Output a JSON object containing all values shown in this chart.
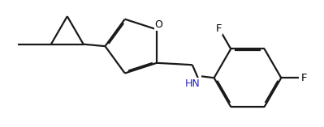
{
  "bg_color": "#ffffff",
  "bond_color": "#1a1a1a",
  "lw": 1.6,
  "dbo": 0.018,
  "figsize": [
    3.99,
    1.57
  ],
  "dpi": 100,
  "xlim": [
    0.0,
    7.8
  ],
  "ylim": [
    -1.0,
    2.2
  ]
}
